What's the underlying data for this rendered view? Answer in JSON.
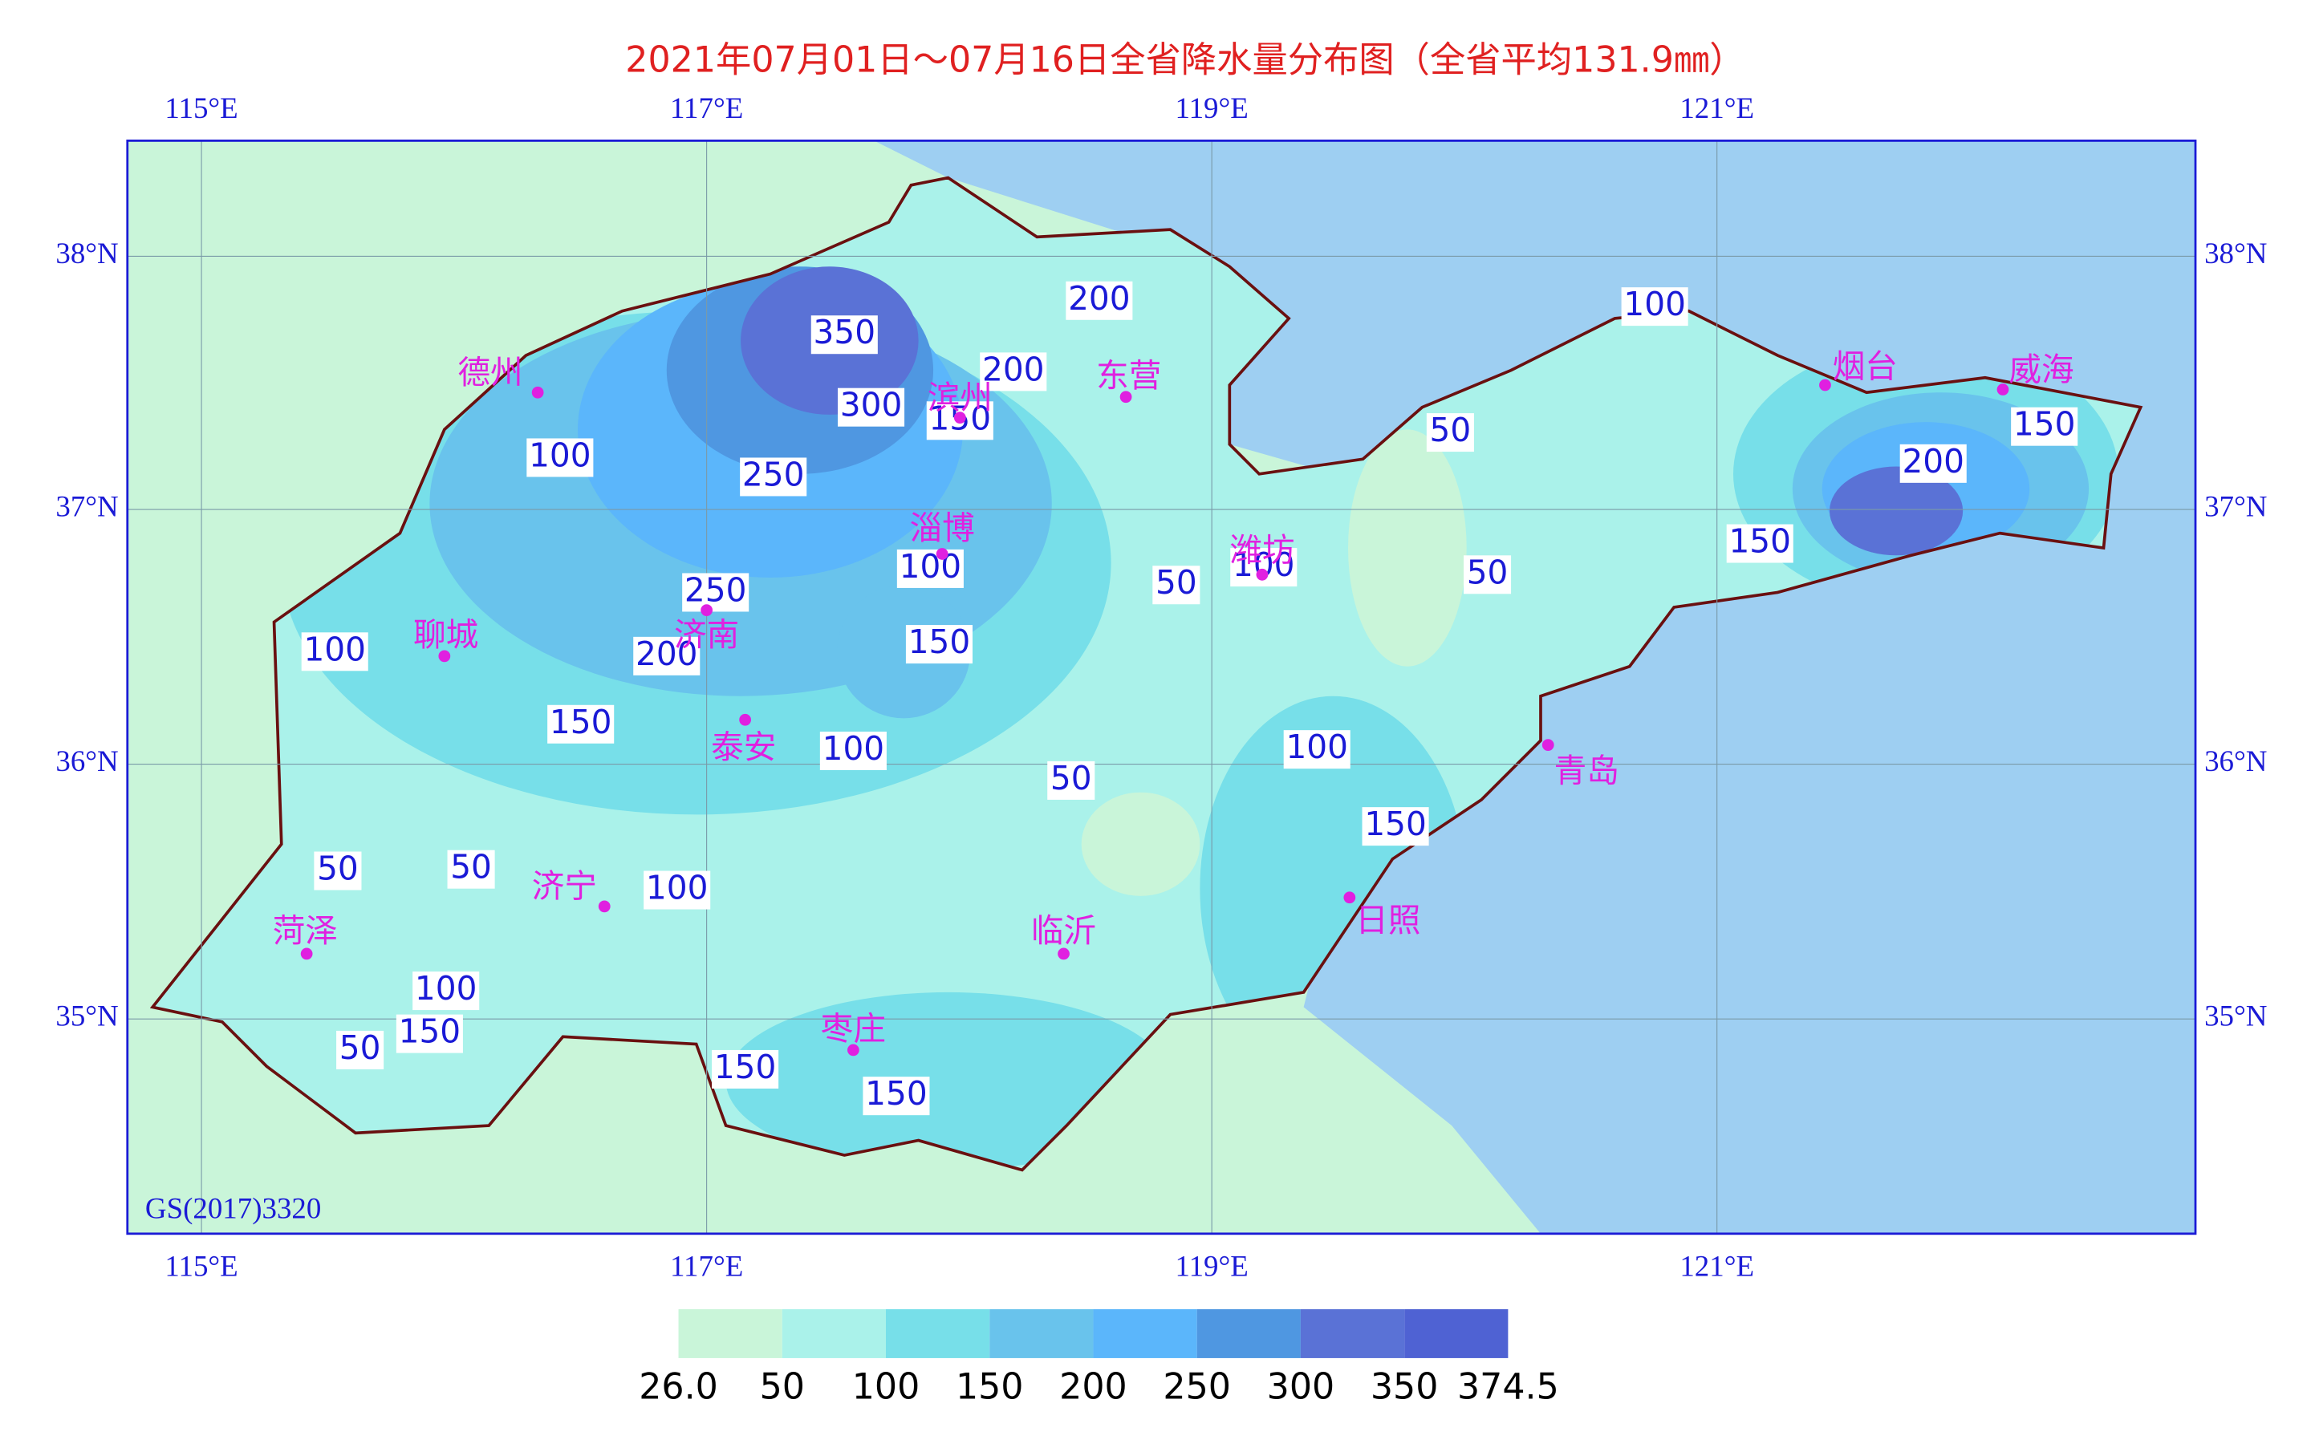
{
  "title": "2021年07月01日～07月16日全省降水量分布图（全省平均131.9㎜）",
  "lon_labels": [
    "115°E",
    "117°E",
    "119°E",
    "121°E"
  ],
  "lat_labels": [
    "38°N",
    "37°N",
    "36°N",
    "35°N"
  ],
  "cities": [
    "德州",
    "滨州",
    "东营",
    "烟台",
    "威海",
    "淄博",
    "潍坊",
    "聊城",
    "济南",
    "泰安",
    "青岛",
    "济宁",
    "菏泽",
    "临沂",
    "日照",
    "枣庄"
  ],
  "contour_labels": [
    350,
    300,
    250,
    200,
    200,
    150,
    100,
    250,
    200,
    150,
    100,
    100,
    150,
    100,
    50,
    100,
    50,
    50,
    100,
    150,
    200,
    150,
    100,
    50,
    150,
    50,
    50,
    100,
    100,
    150,
    50,
    150,
    150
  ],
  "source": "GS(2017)3320",
  "colorbar": {
    "ticks": [
      {
        "value": 26,
        "label": "26.0"
      },
      50,
      100,
      150,
      200,
      250,
      300,
      350,
      374.5
    ],
    "colors": [
      "#c9f5d9",
      "#aaf2ea",
      "#77dfe9",
      "#69c3ec",
      "#5bb6fb",
      "#4f97e1",
      "#5a72d6",
      "#4f62d3"
    ]
  }
}
